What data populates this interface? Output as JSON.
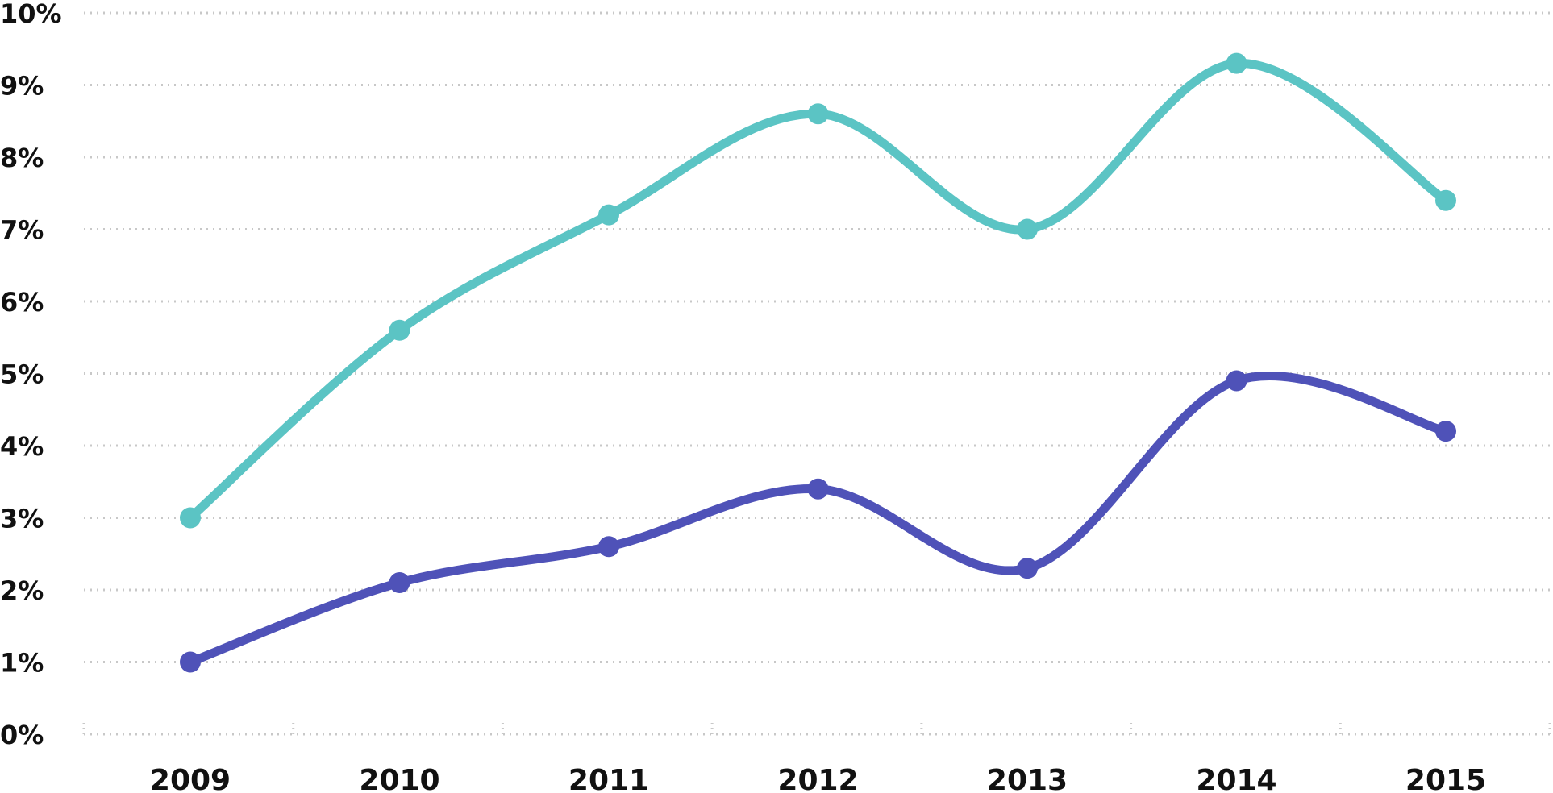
{
  "chart_data": {
    "type": "line",
    "title": "",
    "xlabel": "",
    "ylabel": "",
    "categories": [
      "2009",
      "2010",
      "2011",
      "2012",
      "2013",
      "2014",
      "2015"
    ],
    "y_ticks": [
      "0%",
      "1%",
      "2%",
      "3%",
      "4%",
      "5%",
      "6%",
      "7%",
      "8%",
      "9%",
      "10%"
    ],
    "ylim": [
      0,
      10
    ],
    "y_unit": "%",
    "grid": "horizontal dotted",
    "legend": "none",
    "smooth": true,
    "series": [
      {
        "color": "#5bc4c4",
        "values": [
          3.0,
          5.6,
          7.2,
          8.6,
          7.0,
          9.3,
          7.4
        ]
      },
      {
        "color": "#4f52b8",
        "values": [
          1.0,
          2.1,
          2.6,
          3.4,
          2.3,
          4.9,
          4.2
        ]
      }
    ]
  }
}
